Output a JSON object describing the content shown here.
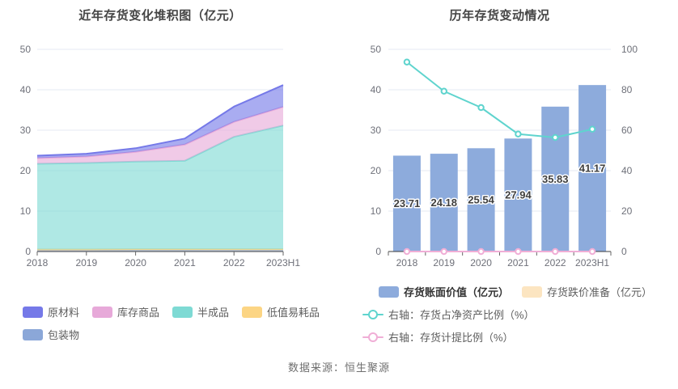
{
  "page": {
    "footer": "数据来源：恒生聚源"
  },
  "chart_data": [
    {
      "type": "area",
      "stacked": true,
      "title": "近年存货变化堆积图（亿元）",
      "categories": [
        "2018",
        "2019",
        "2020",
        "2021",
        "2022",
        "2023H1"
      ],
      "ylim": [
        0,
        50
      ],
      "yticks": [
        0,
        10,
        20,
        30,
        40,
        50
      ],
      "grid": true,
      "legend_position": "bottom",
      "series": [
        {
          "name": "包装物",
          "color": "#8ba7d8",
          "values": [
            0.45,
            0.45,
            0.48,
            0.48,
            0.5,
            0.5
          ]
        },
        {
          "name": "低值易耗品",
          "color": "#fcd584",
          "values": [
            0.06,
            0.06,
            0.06,
            0.06,
            0.06,
            0.06
          ]
        },
        {
          "name": "半成品",
          "color": "#7edad4",
          "values": [
            21.2,
            21.4,
            21.7,
            21.9,
            27.8,
            30.6
          ]
        },
        {
          "name": "库存商品",
          "color": "#e7a9d9",
          "values": [
            1.4,
            1.6,
            2.4,
            4.0,
            3.7,
            4.6
          ]
        },
        {
          "name": "原材料",
          "color": "#7579e8",
          "values": [
            0.6,
            0.67,
            0.9,
            1.5,
            3.77,
            5.41
          ]
        }
      ],
      "stack_totals": [
        23.71,
        24.18,
        25.54,
        27.94,
        35.83,
        41.17
      ],
      "legend": [
        {
          "label": "原材料",
          "color": "#7579e8"
        },
        {
          "label": "库存商品",
          "color": "#e7a9d9"
        },
        {
          "label": "半成品",
          "color": "#7edad4"
        },
        {
          "label": "低值易耗品",
          "color": "#fcd584"
        },
        {
          "label": "包装物",
          "color": "#8ba7d8"
        }
      ]
    },
    {
      "type": "bar",
      "title": "历年存货变动情况",
      "categories": [
        "2018",
        "2019",
        "2020",
        "2021",
        "2022",
        "2023H1"
      ],
      "left_axis": {
        "lim": [
          0,
          50
        ],
        "ticks": [
          0,
          10,
          20,
          30,
          40,
          50
        ]
      },
      "right_axis": {
        "lim": [
          0,
          100
        ],
        "ticks": [
          0,
          20,
          40,
          60,
          80,
          100
        ]
      },
      "grid": true,
      "legend_position": "bottom",
      "series": [
        {
          "name": "存货账面价值（亿元）",
          "kind": "bar",
          "axis": "left",
          "color": "#8dabdc",
          "values": [
            23.71,
            24.18,
            25.54,
            27.94,
            35.83,
            41.17
          ],
          "data_labels": [
            "23.71",
            "24.18",
            "25.54",
            "27.94",
            "35.83",
            "41.17"
          ]
        },
        {
          "name": "存货跌价准备（亿元）",
          "kind": "bar",
          "axis": "left",
          "color": "#fce5c1",
          "values": [
            0,
            0,
            0,
            0,
            0,
            0
          ]
        },
        {
          "name": "右轴：存货占净资产比例（%）",
          "kind": "line",
          "axis": "right",
          "color": "#5fd4ce",
          "values": [
            93.7,
            79.3,
            71.2,
            58.1,
            56.4,
            60.5
          ]
        },
        {
          "name": "右轴：存货计提比例（%）",
          "kind": "line",
          "axis": "right",
          "color": "#f0aed6",
          "values": [
            0,
            0,
            0,
            0,
            0,
            0
          ]
        }
      ]
    }
  ]
}
